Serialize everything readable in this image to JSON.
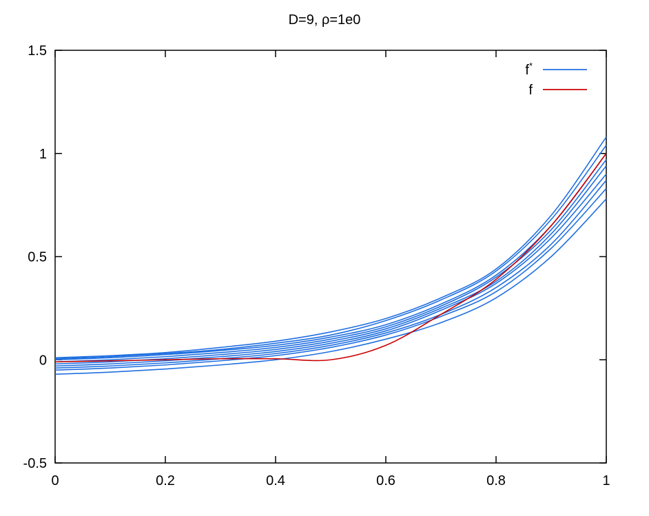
{
  "chart_data": {
    "type": "line",
    "title": "D=9, ρ=1e0",
    "xlabel": "",
    "ylabel": "",
    "xlim": [
      0,
      1
    ],
    "ylim": [
      -0.5,
      1.5
    ],
    "x_ticks": [
      0,
      0.2,
      0.4,
      0.6,
      0.8,
      1
    ],
    "x_tick_labels": [
      "0",
      "0.2",
      "0.4",
      "0.6",
      "0.8",
      "1"
    ],
    "y_ticks": [
      -0.5,
      0,
      0.5,
      1,
      1.5
    ],
    "y_tick_labels": [
      "-0.5",
      "0",
      "0.5",
      "1",
      "1.5"
    ],
    "grid": false,
    "legend_position": "top-right",
    "legend": [
      {
        "label": "f",
        "superscript": "*",
        "color": "#1f6fe0"
      },
      {
        "label": "f",
        "superscript": "",
        "color": "#cc0000"
      }
    ],
    "x": [
      0,
      0.1,
      0.2,
      0.3,
      0.4,
      0.5,
      0.6,
      0.7,
      0.8,
      0.9,
      1.0
    ],
    "series": [
      {
        "group": "f*",
        "color": "#1f6fe0",
        "values": [
          -0.07,
          -0.06,
          -0.045,
          -0.025,
          0.0,
          0.04,
          0.1,
          0.18,
          0.3,
          0.5,
          0.78
        ]
      },
      {
        "group": "f*",
        "color": "#1f6fe0",
        "values": [
          -0.05,
          -0.04,
          -0.025,
          -0.005,
          0.02,
          0.06,
          0.12,
          0.21,
          0.33,
          0.54,
          0.83
        ]
      },
      {
        "group": "f*",
        "color": "#1f6fe0",
        "values": [
          -0.04,
          -0.03,
          -0.015,
          0.005,
          0.03,
          0.07,
          0.13,
          0.22,
          0.35,
          0.56,
          0.87
        ]
      },
      {
        "group": "f*",
        "color": "#1f6fe0",
        "values": [
          -0.03,
          -0.02,
          -0.005,
          0.015,
          0.04,
          0.08,
          0.14,
          0.24,
          0.37,
          0.59,
          0.9
        ]
      },
      {
        "group": "f*",
        "color": "#1f6fe0",
        "values": [
          -0.02,
          -0.01,
          0.005,
          0.025,
          0.05,
          0.09,
          0.15,
          0.25,
          0.38,
          0.61,
          0.94
        ]
      },
      {
        "group": "f*",
        "color": "#1f6fe0",
        "values": [
          -0.01,
          0.0,
          0.015,
          0.035,
          0.06,
          0.1,
          0.16,
          0.26,
          0.4,
          0.63,
          0.97
        ]
      },
      {
        "group": "f*",
        "color": "#1f6fe0",
        "values": [
          0.0,
          0.01,
          0.025,
          0.045,
          0.07,
          0.11,
          0.17,
          0.27,
          0.41,
          0.65,
          1.0
        ]
      },
      {
        "group": "f*",
        "color": "#1f6fe0",
        "values": [
          0.005,
          0.015,
          0.03,
          0.05,
          0.08,
          0.12,
          0.19,
          0.29,
          0.43,
          0.68,
          1.04
        ]
      },
      {
        "group": "f*",
        "color": "#1f6fe0",
        "values": [
          0.01,
          0.02,
          0.035,
          0.06,
          0.09,
          0.135,
          0.2,
          0.3,
          0.44,
          0.7,
          1.08
        ]
      },
      {
        "group": "f",
        "color": "#cc0000",
        "values": [
          -0.01,
          -0.005,
          0.0,
          0.005,
          0.005,
          0.0,
          0.07,
          0.22,
          0.39,
          0.65,
          1.0
        ]
      }
    ]
  }
}
